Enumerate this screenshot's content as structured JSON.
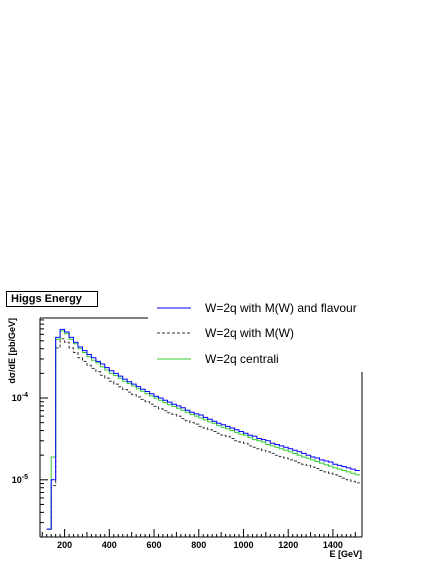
{
  "chart_data": {
    "type": "line",
    "title": "Higgs Energy",
    "xlabel": "E [GeV]",
    "ylabel": "dσ/dE [pb/GeV]",
    "xlim": [
      90,
      1530
    ],
    "ylim": [
      2e-06,
      0.00095
    ],
    "yscale": "log",
    "x_ticks": [
      200,
      400,
      600,
      800,
      1000,
      1200,
      1400
    ],
    "y_ticks": [
      {
        "value": 0.0001,
        "base": "10",
        "exp": "-4"
      },
      {
        "value": 1e-05,
        "base": "10",
        "exp": "-5"
      }
    ],
    "bin_width": 20,
    "x_start": 120,
    "series": [
      {
        "name": "W=2q with M(W) and flavour",
        "color": "#0000ff",
        "style": "solid",
        "values": [
          2.5e-06,
          1e-05,
          0.00055,
          0.00069,
          0.00064,
          0.00055,
          0.00048,
          0.00042,
          0.00038,
          0.00034,
          0.00031,
          0.00028,
          0.00026,
          0.000235,
          0.000215,
          0.0002,
          0.000185,
          0.00017,
          0.000158,
          0.000148,
          0.000138,
          0.000128,
          0.00012,
          0.000113,
          0.000105,
          0.0001,
          9.4e-05,
          8.9e-05,
          8.4e-05,
          8e-05,
          7.6e-05,
          7.1e-05,
          6.7e-05,
          6.4e-05,
          6.2e-05,
          5.8e-05,
          5.5e-05,
          5.2e-05,
          4.9e-05,
          4.7e-05,
          4.5e-05,
          4.3e-05,
          4.1e-05,
          3.9e-05,
          3.7e-05,
          3.5e-05,
          3.4e-05,
          3.2e-05,
          3.1e-05,
          3e-05,
          2.8e-05,
          2.7e-05,
          2.6e-05,
          2.5e-05,
          2.4e-05,
          2.3e-05,
          2.2e-05,
          2.1e-05,
          2e-05,
          1.9e-05,
          1.85e-05,
          1.75e-05,
          1.7e-05,
          1.65e-05,
          1.55e-05,
          1.5e-05,
          1.45e-05,
          1.4e-05,
          1.35e-05,
          1.3e-05
        ]
      },
      {
        "name": "W=2q with M(W)",
        "color": "#333333",
        "style": "dashed",
        "values": [
          2.5e-06,
          8.5e-06,
          0.00041,
          0.00053,
          0.00048,
          0.00041,
          0.00036,
          0.00031,
          0.00028,
          0.00025,
          0.00023,
          0.00021,
          0.00019,
          0.000175,
          0.00016,
          0.000148,
          0.000137,
          0.000127,
          0.000118,
          0.00011,
          0.000103,
          9.6e-05,
          9e-05,
          8.4e-05,
          7.9e-05,
          7.4e-05,
          7e-05,
          6.6e-05,
          6.3e-05,
          6e-05,
          5.6e-05,
          5.3e-05,
          5e-05,
          4.8e-05,
          4.5e-05,
          4.3e-05,
          4.1e-05,
          3.9e-05,
          3.7e-05,
          3.5e-05,
          3.4e-05,
          3.2e-05,
          3e-05,
          2.9e-05,
          2.8e-05,
          2.6e-05,
          2.5e-05,
          2.4e-05,
          2.3e-05,
          2.2e-05,
          2.1e-05,
          2e-05,
          1.92e-05,
          1.85e-05,
          1.75e-05,
          1.7e-05,
          1.62e-05,
          1.55e-05,
          1.5e-05,
          1.43e-05,
          1.37e-05,
          1.3e-05,
          1.25e-05,
          1.2e-05,
          1.15e-05,
          1.1e-05,
          1.05e-05,
          1e-05,
          9.6e-06,
          9.2e-06
        ]
      },
      {
        "name": "W=2q centrali",
        "color": "#33cc33",
        "style": "solid",
        "values": [
          2.5e-06,
          1.9e-05,
          0.00052,
          0.00066,
          0.00061,
          0.00052,
          0.00046,
          0.0004,
          0.00036,
          0.00032,
          0.00029,
          0.00027,
          0.00024,
          0.00022,
          0.0002,
          0.000188,
          0.000174,
          0.00016,
          0.00015,
          0.00014,
          0.00013,
          0.000121,
          0.000113,
          0.000106,
          0.0001,
          9.4e-05,
          8.8e-05,
          8.3e-05,
          7.9e-05,
          7.5e-05,
          7.1e-05,
          6.7e-05,
          6.3e-05,
          6e-05,
          5.7e-05,
          5.4e-05,
          5.1e-05,
          4.9e-05,
          4.6e-05,
          4.4e-05,
          4.2e-05,
          4e-05,
          3.8e-05,
          3.6e-05,
          3.5e-05,
          3.3e-05,
          3.1e-05,
          3e-05,
          2.9e-05,
          2.7e-05,
          2.6e-05,
          2.5e-05,
          2.4e-05,
          2.3e-05,
          2.2e-05,
          2.1e-05,
          2e-05,
          1.9e-05,
          1.83e-05,
          1.75e-05,
          1.68e-05,
          1.6e-05,
          1.53e-05,
          1.47e-05,
          1.4e-05,
          1.35e-05,
          1.3e-05,
          1.25e-05,
          1.2e-05,
          1.15e-05
        ]
      }
    ],
    "legend": "top-right",
    "grid": false
  }
}
